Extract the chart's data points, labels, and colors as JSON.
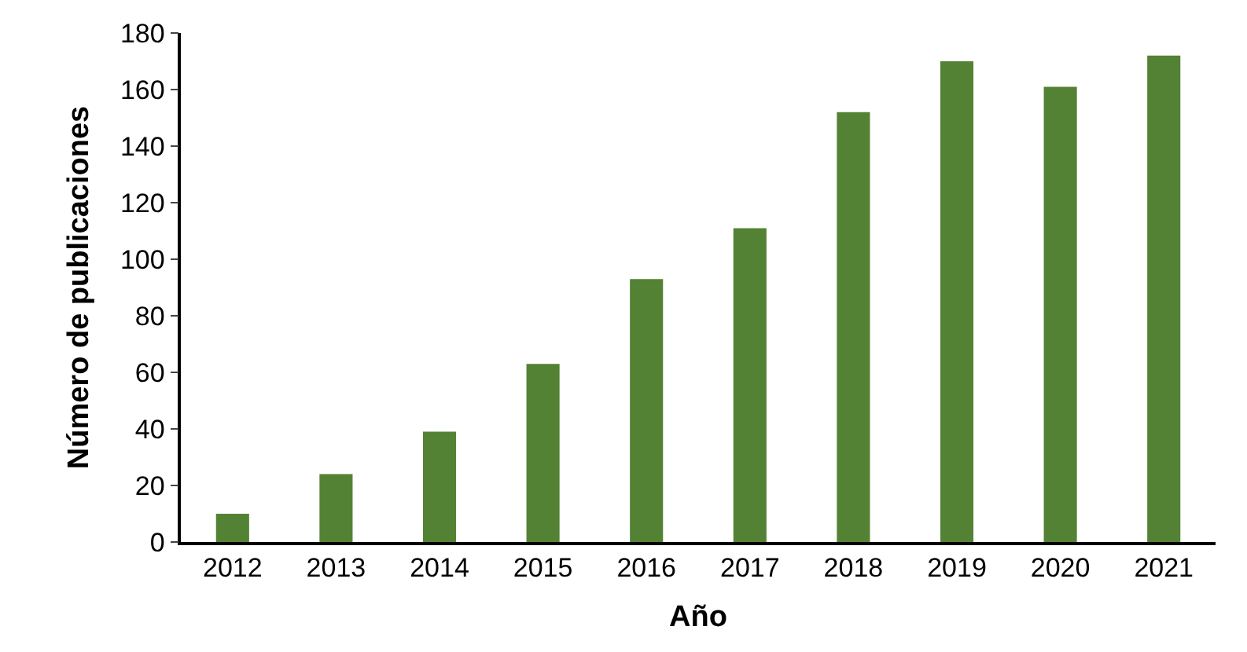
{
  "chart_data": {
    "type": "bar",
    "xlabel": "Año",
    "ylabel": "Número de publicaciones",
    "categories": [
      "2012",
      "2013",
      "2014",
      "2015",
      "2016",
      "2017",
      "2018",
      "2019",
      "2020",
      "2021"
    ],
    "values": [
      10,
      24,
      39,
      63,
      93,
      111,
      152,
      170,
      161,
      172
    ],
    "color": "#548235",
    "ylim": [
      0,
      180
    ],
    "yticks": [
      0,
      20,
      40,
      60,
      80,
      100,
      120,
      140,
      160,
      180
    ]
  }
}
